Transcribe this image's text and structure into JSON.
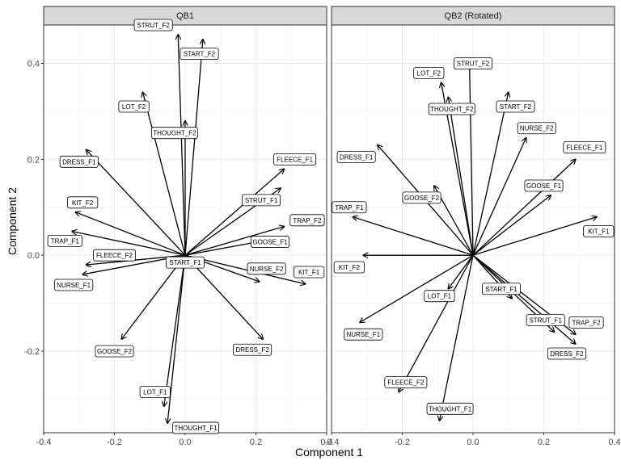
{
  "chart_data": {
    "type": "biplot",
    "xlabel": "Component 1",
    "ylabel": "Component 2",
    "xlim": [
      -0.4,
      0.4
    ],
    "ylim": [
      -0.37,
      0.48
    ],
    "x_ticks": [
      -0.4,
      -0.2,
      0.0,
      0.2,
      0.4
    ],
    "x_tick_labels": [
      "-0.4",
      "-0.2",
      "0.0",
      "0.2",
      "0.4"
    ],
    "y_ticks": [
      -0.2,
      0.0,
      0.2,
      0.4
    ],
    "y_tick_labels": [
      "-0.2",
      "0.0",
      "0.2",
      "0.4"
    ],
    "panels": [
      {
        "title": "QB1",
        "vectors": [
          {
            "label": "STRUT_F2",
            "x": -0.02,
            "y": 0.46,
            "lx": -0.09,
            "ly": 0.48
          },
          {
            "label": "START_F2",
            "x": 0.05,
            "y": 0.45,
            "lx": 0.04,
            "ly": 0.42
          },
          {
            "label": "LOT_F2",
            "x": -0.12,
            "y": 0.34,
            "lx": -0.145,
            "ly": 0.31
          },
          {
            "label": "THOUGHT_F2",
            "x": 0.0,
            "y": 0.28,
            "lx": -0.03,
            "ly": 0.255
          },
          {
            "label": "DRESS_F1",
            "x": -0.28,
            "y": 0.22,
            "lx": -0.3,
            "ly": 0.195
          },
          {
            "label": "FLEECE_F1",
            "x": 0.28,
            "y": 0.18,
            "lx": 0.31,
            "ly": 0.2
          },
          {
            "label": "STRUT_F1",
            "x": 0.27,
            "y": 0.14,
            "lx": 0.215,
            "ly": 0.115
          },
          {
            "label": "KIT_F2",
            "x": -0.31,
            "y": 0.09,
            "lx": -0.29,
            "ly": 0.11
          },
          {
            "label": "TRAP_F2",
            "x": 0.28,
            "y": 0.06,
            "lx": 0.345,
            "ly": 0.073
          },
          {
            "label": "GOOSE_F1",
            "x": 0.22,
            "y": 0.03,
            "lx": 0.24,
            "ly": 0.028
          },
          {
            "label": "TRAP_F1",
            "x": -0.32,
            "y": 0.05,
            "lx": -0.34,
            "ly": 0.03
          },
          {
            "label": "FLEECE_F2",
            "x": -0.28,
            "y": -0.02,
            "lx": -0.2,
            "ly": 0.0
          },
          {
            "label": "START_F1",
            "x": 0.0,
            "y": -0.01,
            "lx": 0.0,
            "ly": -0.015
          },
          {
            "label": "NURSE_F2",
            "x": 0.21,
            "y": -0.055,
            "lx": 0.23,
            "ly": -0.028
          },
          {
            "label": "KIT_F1",
            "x": 0.34,
            "y": -0.06,
            "lx": 0.35,
            "ly": -0.035
          },
          {
            "label": "NURSE_F1",
            "x": -0.29,
            "y": -0.04,
            "lx": -0.315,
            "ly": -0.062
          },
          {
            "label": "GOOSE_F2",
            "x": -0.18,
            "y": -0.175,
            "lx": -0.2,
            "ly": -0.2
          },
          {
            "label": "DRESS_F2",
            "x": 0.22,
            "y": -0.175,
            "lx": 0.19,
            "ly": -0.197
          },
          {
            "label": "LOT_F1",
            "x": -0.06,
            "y": -0.315,
            "lx": -0.085,
            "ly": -0.285
          },
          {
            "label": "THOUGHT_F1",
            "x": -0.05,
            "y": -0.35,
            "lx": 0.03,
            "ly": -0.36
          }
        ]
      },
      {
        "title": "QB2 (Rotated)",
        "vectors": [
          {
            "label": "STRUT_F2",
            "x": -0.01,
            "y": 0.4,
            "lx": 0.0,
            "ly": 0.4
          },
          {
            "label": "LOT_F2",
            "x": -0.09,
            "y": 0.36,
            "lx": -0.125,
            "ly": 0.38
          },
          {
            "label": "START_F2",
            "x": 0.1,
            "y": 0.34,
            "lx": 0.12,
            "ly": 0.31
          },
          {
            "label": "THOUGHT_F2",
            "x": -0.07,
            "y": 0.33,
            "lx": -0.06,
            "ly": 0.305
          },
          {
            "label": "NURSE_F2",
            "x": 0.15,
            "y": 0.245,
            "lx": 0.18,
            "ly": 0.265
          },
          {
            "label": "FLEECE_F1",
            "x": 0.29,
            "y": 0.2,
            "lx": 0.315,
            "ly": 0.225
          },
          {
            "label": "DRESS_F1",
            "x": -0.27,
            "y": 0.23,
            "lx": -0.33,
            "ly": 0.205
          },
          {
            "label": "GOOSE_F1",
            "x": 0.22,
            "y": 0.125,
            "lx": 0.2,
            "ly": 0.145
          },
          {
            "label": "GOOSE_F2",
            "x": -0.11,
            "y": 0.145,
            "lx": -0.145,
            "ly": 0.12
          },
          {
            "label": "TRAP_F1",
            "x": -0.34,
            "y": 0.08,
            "lx": -0.35,
            "ly": 0.1
          },
          {
            "label": "KIT_F1",
            "x": 0.35,
            "y": 0.08,
            "lx": 0.355,
            "ly": 0.05
          },
          {
            "label": "KIT_F2",
            "x": -0.31,
            "y": 0.0,
            "lx": -0.35,
            "ly": -0.025
          },
          {
            "label": "START_F1",
            "x": 0.11,
            "y": -0.09,
            "lx": 0.08,
            "ly": -0.07
          },
          {
            "label": "LOT_F1",
            "x": -0.07,
            "y": -0.07,
            "lx": -0.095,
            "ly": -0.085
          },
          {
            "label": "STRUT_F1",
            "x": 0.23,
            "y": -0.16,
            "lx": 0.205,
            "ly": -0.135
          },
          {
            "label": "TRAP_F2",
            "x": 0.29,
            "y": -0.165,
            "lx": 0.32,
            "ly": -0.14
          },
          {
            "label": "DRESS_F2",
            "x": 0.29,
            "y": -0.185,
            "lx": 0.265,
            "ly": -0.205
          },
          {
            "label": "NURSE_F1",
            "x": -0.32,
            "y": -0.14,
            "lx": -0.31,
            "ly": -0.165
          },
          {
            "label": "FLEECE_F2",
            "x": -0.21,
            "y": -0.285,
            "lx": -0.19,
            "ly": -0.265
          },
          {
            "label": "THOUGHT_F1",
            "x": -0.095,
            "y": -0.345,
            "lx": -0.065,
            "ly": -0.32
          }
        ]
      }
    ]
  }
}
